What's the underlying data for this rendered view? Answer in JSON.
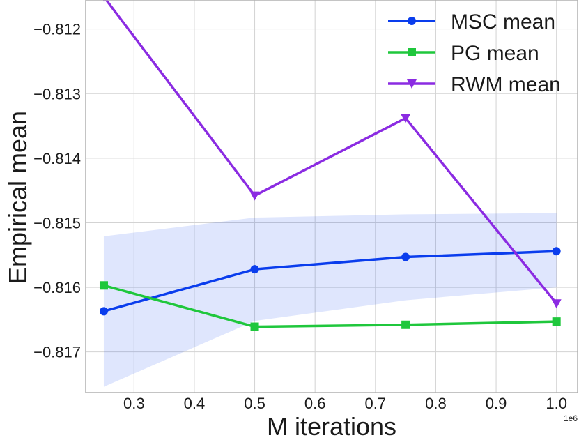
{
  "chart_data": {
    "type": "line",
    "title": "",
    "xlabel": "M iterations",
    "ylabel": "Empirical mean",
    "x_offset_label": "1e6",
    "x": [
      0.25,
      0.5,
      0.75,
      1.0
    ],
    "xlim": [
      0.22,
      1.035
    ],
    "ylim": [
      -0.81763,
      -0.81155
    ],
    "xticks": [
      0.3,
      0.4,
      0.5,
      0.6,
      0.7,
      0.8,
      0.9,
      1.0
    ],
    "xtick_labels": [
      "0.3",
      "0.4",
      "0.5",
      "0.6",
      "0.7",
      "0.8",
      "0.9",
      "1.0"
    ],
    "yticks": [
      -0.817,
      -0.816,
      -0.815,
      -0.814,
      -0.813,
      -0.812
    ],
    "ytick_labels": [
      "−0.817",
      "−0.816",
      "−0.815",
      "−0.814",
      "−0.813",
      "−0.812"
    ],
    "grid": true,
    "legend_position": "top-right",
    "series": [
      {
        "name": "MSC mean",
        "color": "#0a3ded",
        "marker": "circle",
        "values": [
          -0.81637,
          -0.81572,
          -0.81553,
          -0.81544
        ]
      },
      {
        "name": "PG mean",
        "color": "#1fc73c",
        "marker": "square",
        "values": [
          -0.81597,
          -0.81661,
          -0.81658,
          -0.81653
        ]
      },
      {
        "name": "RWM mean",
        "color": "#8b2be2",
        "marker": "triangle-down",
        "values": [
          -0.8115,
          -0.81458,
          -0.81338,
          -0.81625
        ]
      }
    ],
    "band": {
      "series": "MSC mean",
      "color": "#0a3ded",
      "upper": [
        -0.81521,
        -0.81492,
        -0.81487,
        -0.81485
      ],
      "lower": [
        -0.81754,
        -0.81652,
        -0.8162,
        -0.816
      ]
    }
  }
}
